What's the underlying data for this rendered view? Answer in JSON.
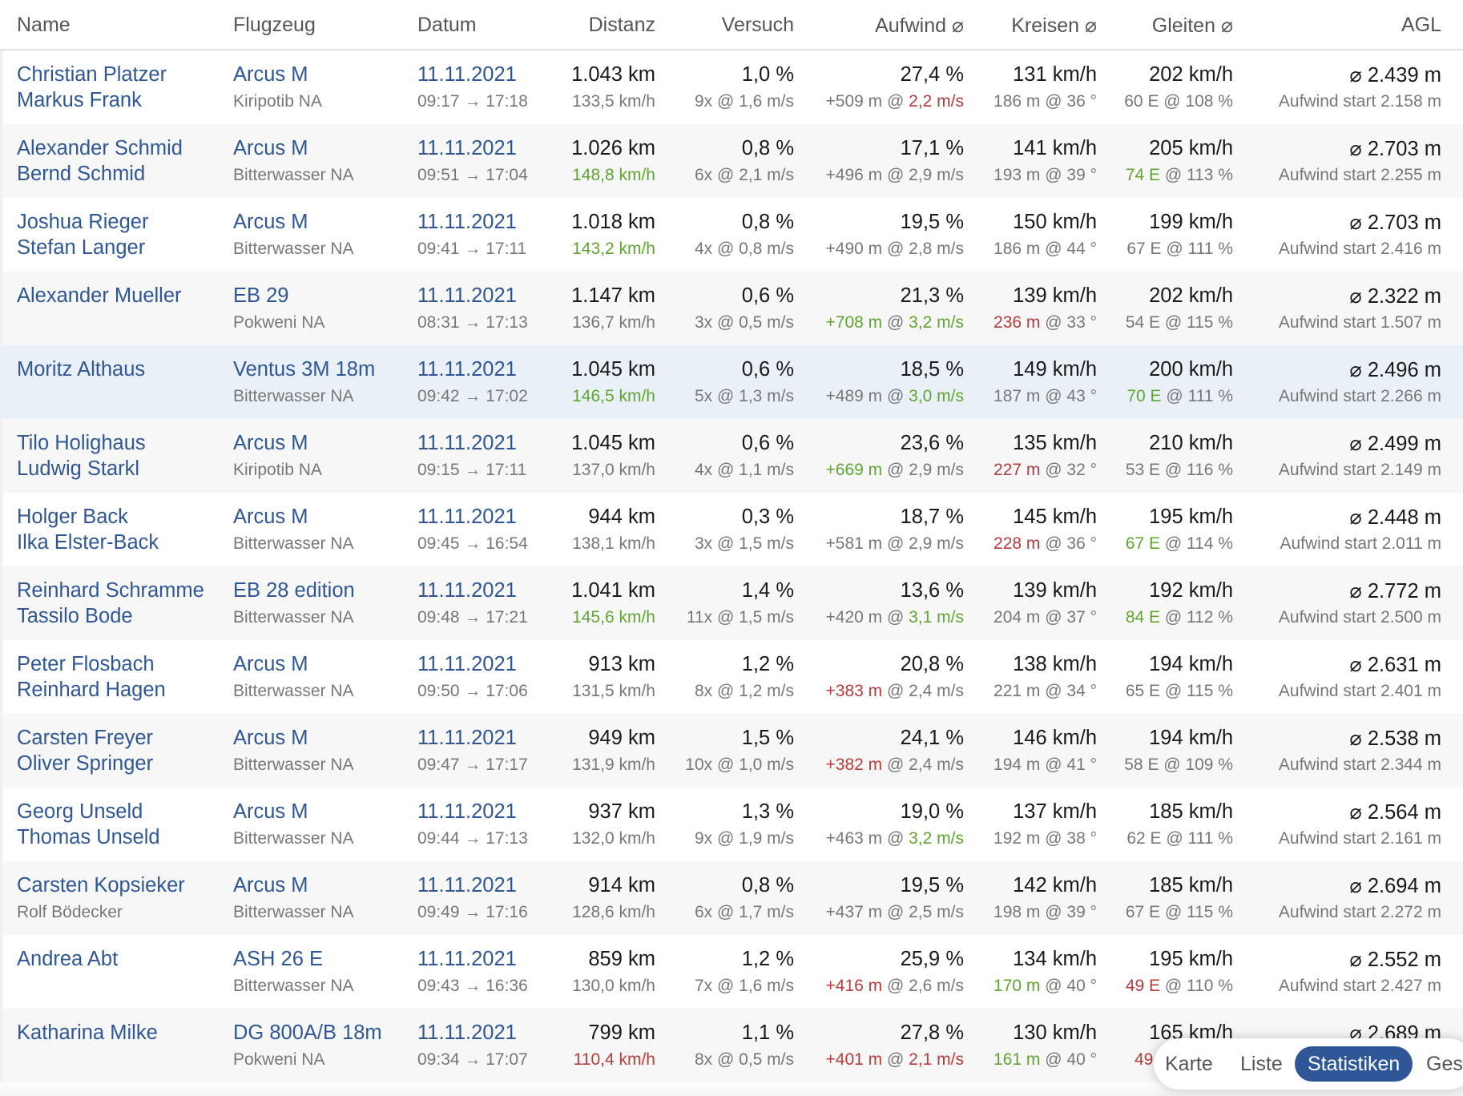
{
  "headers": {
    "name": "Name",
    "aircraft": "Flugzeug",
    "date": "Datum",
    "distance": "Distanz",
    "attempt": "Versuch",
    "climb": "Aufwind ⌀",
    "circling": "Kreisen ⌀",
    "glide": "Gleiten ⌀",
    "agl": "AGL"
  },
  "flights": [
    {
      "pilot": "Christian Platzer",
      "copilot": "Markus Frank",
      "copilot_muted": false,
      "aircraft": "Arcus M",
      "airfield": "Kiripotib NA",
      "date": "11.11.2021",
      "time": "09:17 → 17:18",
      "distance": "1.043 km",
      "speed": "133,5 km/h",
      "attempt": "1,0 %",
      "attempt_detail": "9x @ 1,6 m/s",
      "climb": "27,4 %",
      "climb_gain": "+509 m",
      "climb_rate": "2,2 m/s",
      "circ_speed": "131 km/h",
      "circ_height": "186 m",
      "circ_angle": "@ 36 °",
      "glide_speed": "202 km/h",
      "glide_ratio": "60 E",
      "glide_pct": "@ 108 %",
      "agl": "⌀ 2.439 m",
      "agl_start": "Aufwind start 2.158 m"
    },
    {
      "pilot": "Alexander Schmid",
      "copilot": "Bernd Schmid",
      "copilot_muted": false,
      "aircraft": "Arcus M",
      "airfield": "Bitterwasser NA",
      "date": "11.11.2021",
      "time": "09:51 → 17:04",
      "distance": "1.026 km",
      "speed": "148,8 km/h",
      "attempt": "0,8 %",
      "attempt_detail": "6x @ 2,1 m/s",
      "climb": "17,1 %",
      "climb_gain": "+496 m",
      "climb_rate": "2,9 m/s",
      "circ_speed": "141 km/h",
      "circ_height": "193 m",
      "circ_angle": "@ 39 °",
      "glide_speed": "205 km/h",
      "glide_ratio": "74 E",
      "glide_pct": "@ 113 %",
      "agl": "⌀ 2.703 m",
      "agl_start": "Aufwind start 2.255 m"
    },
    {
      "pilot": "Joshua Rieger",
      "copilot": "Stefan Langer",
      "copilot_muted": false,
      "aircraft": "Arcus M",
      "airfield": "Bitterwasser NA",
      "date": "11.11.2021",
      "time": "09:41 → 17:11",
      "distance": "1.018 km",
      "speed": "143,2 km/h",
      "attempt": "0,8 %",
      "attempt_detail": "4x @ 0,8 m/s",
      "climb": "19,5 %",
      "climb_gain": "+490 m",
      "climb_rate": "2,8 m/s",
      "circ_speed": "150 km/h",
      "circ_height": "186 m",
      "circ_angle": "@ 44 °",
      "glide_speed": "199 km/h",
      "glide_ratio": "67 E",
      "glide_pct": "@ 111 %",
      "agl": "⌀ 2.703 m",
      "agl_start": "Aufwind start 2.416 m"
    },
    {
      "pilot": "Alexander Mueller",
      "copilot": "",
      "copilot_muted": false,
      "aircraft": "EB 29",
      "airfield": "Pokweni NA",
      "date": "11.11.2021",
      "time": "08:31 → 17:13",
      "distance": "1.147 km",
      "speed": "136,7 km/h",
      "attempt": "0,6 %",
      "attempt_detail": "3x @ 0,5 m/s",
      "climb": "21,3 %",
      "climb_gain": "+708 m",
      "climb_rate": "3,2 m/s",
      "circ_speed": "139 km/h",
      "circ_height": "236 m",
      "circ_angle": "@ 33 °",
      "glide_speed": "202 km/h",
      "glide_ratio": "54 E",
      "glide_pct": "@ 115 %",
      "agl": "⌀ 2.322 m",
      "agl_start": "Aufwind start 1.507 m"
    },
    {
      "pilot": "Moritz Althaus",
      "copilot": "",
      "copilot_muted": false,
      "aircraft": "Ventus 3M 18m",
      "airfield": "Bitterwasser NA",
      "date": "11.11.2021",
      "time": "09:42 → 17:02",
      "distance": "1.045 km",
      "speed": "146,5 km/h",
      "attempt": "0,6 %",
      "attempt_detail": "5x @ 1,3 m/s",
      "climb": "18,5 %",
      "climb_gain": "+489 m",
      "climb_rate": "3,0 m/s",
      "circ_speed": "149 km/h",
      "circ_height": "187 m",
      "circ_angle": "@ 43 °",
      "glide_speed": "200 km/h",
      "glide_ratio": "70 E",
      "glide_pct": "@ 111 %",
      "agl": "⌀ 2.496 m",
      "agl_start": "Aufwind start 2.266 m"
    },
    {
      "pilot": "Tilo Holighaus",
      "copilot": "Ludwig Starkl",
      "copilot_muted": false,
      "aircraft": "Arcus M",
      "airfield": "Kiripotib NA",
      "date": "11.11.2021",
      "time": "09:15 → 17:11",
      "distance": "1.045 km",
      "speed": "137,0 km/h",
      "attempt": "0,6 %",
      "attempt_detail": "4x @ 1,1 m/s",
      "climb": "23,6 %",
      "climb_gain": "+669 m",
      "climb_rate": "2,9 m/s",
      "circ_speed": "135 km/h",
      "circ_height": "227 m",
      "circ_angle": "@ 32 °",
      "glide_speed": "210 km/h",
      "glide_ratio": "53 E",
      "glide_pct": "@ 116 %",
      "agl": "⌀ 2.499 m",
      "agl_start": "Aufwind start 2.149 m"
    },
    {
      "pilot": "Holger Back",
      "copilot": "Ilka Elster-Back",
      "copilot_muted": false,
      "aircraft": "Arcus M",
      "airfield": "Bitterwasser NA",
      "date": "11.11.2021",
      "time": "09:45 → 16:54",
      "distance": "944 km",
      "speed": "138,1 km/h",
      "attempt": "0,3 %",
      "attempt_detail": "3x @ 1,5 m/s",
      "climb": "18,7 %",
      "climb_gain": "+581 m",
      "climb_rate": "2,9 m/s",
      "circ_speed": "145 km/h",
      "circ_height": "228 m",
      "circ_angle": "@ 36 °",
      "glide_speed": "195 km/h",
      "glide_ratio": "67 E",
      "glide_pct": "@ 114 %",
      "agl": "⌀ 2.448 m",
      "agl_start": "Aufwind start 2.011 m"
    },
    {
      "pilot": "Reinhard Schramme",
      "copilot": "Tassilo Bode",
      "copilot_muted": false,
      "aircraft": "EB 28 edition",
      "airfield": "Bitterwasser NA",
      "date": "11.11.2021",
      "time": "09:48 → 17:21",
      "distance": "1.041 km",
      "speed": "145,6 km/h",
      "attempt": "1,4 %",
      "attempt_detail": "11x @ 1,5 m/s",
      "climb": "13,6 %",
      "climb_gain": "+420 m",
      "climb_rate": "3,1 m/s",
      "circ_speed": "139 km/h",
      "circ_height": "204 m",
      "circ_angle": "@ 37 °",
      "glide_speed": "192 km/h",
      "glide_ratio": "84 E",
      "glide_pct": "@ 112 %",
      "agl": "⌀ 2.772 m",
      "agl_start": "Aufwind start 2.500 m"
    },
    {
      "pilot": "Peter Flosbach",
      "copilot": "Reinhard Hagen",
      "copilot_muted": false,
      "aircraft": "Arcus M",
      "airfield": "Bitterwasser NA",
      "date": "11.11.2021",
      "time": "09:50 → 17:06",
      "distance": "913 km",
      "speed": "131,5 km/h",
      "attempt": "1,2 %",
      "attempt_detail": "8x @ 1,2 m/s",
      "climb": "20,8 %",
      "climb_gain": "+383 m",
      "climb_rate": "2,4 m/s",
      "circ_speed": "138 km/h",
      "circ_height": "221 m",
      "circ_angle": "@ 34 °",
      "glide_speed": "194 km/h",
      "glide_ratio": "65 E",
      "glide_pct": "@ 115 %",
      "agl": "⌀ 2.631 m",
      "agl_start": "Aufwind start 2.401 m"
    },
    {
      "pilot": "Carsten Freyer",
      "copilot": "Oliver Springer",
      "copilot_muted": false,
      "aircraft": "Arcus M",
      "airfield": "Bitterwasser NA",
      "date": "11.11.2021",
      "time": "09:47 → 17:17",
      "distance": "949 km",
      "speed": "131,9 km/h",
      "attempt": "1,5 %",
      "attempt_detail": "10x @ 1,0 m/s",
      "climb": "24,1 %",
      "climb_gain": "+382 m",
      "climb_rate": "2,4 m/s",
      "circ_speed": "146 km/h",
      "circ_height": "194 m",
      "circ_angle": "@ 41 °",
      "glide_speed": "194 km/h",
      "glide_ratio": "58 E",
      "glide_pct": "@ 109 %",
      "agl": "⌀ 2.538 m",
      "agl_start": "Aufwind start 2.344 m"
    },
    {
      "pilot": "Georg Unseld",
      "copilot": "Thomas Unseld",
      "copilot_muted": false,
      "aircraft": "Arcus M",
      "airfield": "Bitterwasser NA",
      "date": "11.11.2021",
      "time": "09:44 → 17:13",
      "distance": "937 km",
      "speed": "132,0 km/h",
      "attempt": "1,3 %",
      "attempt_detail": "9x @ 1,9 m/s",
      "climb": "19,0 %",
      "climb_gain": "+463 m",
      "climb_rate": "3,2 m/s",
      "circ_speed": "137 km/h",
      "circ_height": "192 m",
      "circ_angle": "@ 38 °",
      "glide_speed": "185 km/h",
      "glide_ratio": "62 E",
      "glide_pct": "@ 111 %",
      "agl": "⌀ 2.564 m",
      "agl_start": "Aufwind start 2.161 m"
    },
    {
      "pilot": "Carsten Kopsieker",
      "copilot": "Rolf Bödecker",
      "copilot_muted": true,
      "aircraft": "Arcus M",
      "airfield": "Bitterwasser NA",
      "date": "11.11.2021",
      "time": "09:49 → 17:16",
      "distance": "914 km",
      "speed": "128,6 km/h",
      "attempt": "0,8 %",
      "attempt_detail": "6x @ 1,7 m/s",
      "climb": "19,5 %",
      "climb_gain": "+437 m",
      "climb_rate": "2,5 m/s",
      "circ_speed": "142 km/h",
      "circ_height": "198 m",
      "circ_angle": "@ 39 °",
      "glide_speed": "185 km/h",
      "glide_ratio": "67 E",
      "glide_pct": "@ 115 %",
      "agl": "⌀ 2.694 m",
      "agl_start": "Aufwind start 2.272 m"
    },
    {
      "pilot": "Andrea Abt",
      "copilot": "",
      "copilot_muted": false,
      "aircraft": "ASH 26 E",
      "airfield": "Bitterwasser NA",
      "date": "11.11.2021",
      "time": "09:43 → 16:36",
      "distance": "859 km",
      "speed": "130,0 km/h",
      "attempt": "1,2 %",
      "attempt_detail": "7x @ 1,6 m/s",
      "climb": "25,9 %",
      "climb_gain": "+416 m",
      "climb_rate": "2,6 m/s",
      "circ_speed": "134 km/h",
      "circ_height": "170 m",
      "circ_angle": "@ 40 °",
      "glide_speed": "195 km/h",
      "glide_ratio": "49 E",
      "glide_pct": "@ 110 %",
      "agl": "⌀ 2.552 m",
      "agl_start": "Aufwind start 2.427 m"
    },
    {
      "pilot": "Katharina Milke",
      "copilot": "",
      "copilot_muted": false,
      "aircraft": "DG 800A/B 18m",
      "airfield": "Pokweni NA",
      "date": "11.11.2021",
      "time": "09:34 → 17:07",
      "distance": "799 km",
      "speed": "110,4 km/h",
      "attempt": "1,1 %",
      "attempt_detail": "8x @ 0,5 m/s",
      "climb": "27,8 %",
      "climb_gain": "+401 m",
      "climb_rate": "2,1 m/s",
      "circ_speed": "130 km/h",
      "circ_height": "161 m",
      "circ_angle": "@ 40 °",
      "glide_speed": "165 km/h",
      "glide_ratio": "49",
      "glide_pct": "",
      "agl": "⌀ 2.689 m",
      "agl_start": ""
    }
  ],
  "highlights": {
    "speed": {
      "1": "green",
      "2": "green",
      "4": "green",
      "7": "green",
      "13": "red"
    },
    "attempt": {
      "6": "green",
      "7": "red",
      "9": "red"
    },
    "climb_gain": {
      "3": "green",
      "5": "green",
      "8": "red",
      "9": "red",
      "12": "red",
      "13": "red"
    },
    "climb_rate": {
      "0": "red",
      "3": "green",
      "4": "green",
      "7": "green",
      "10": "green",
      "13": "red"
    },
    "circ_height": {
      "3": "red",
      "5": "red",
      "6": "red",
      "12": "green",
      "13": "green"
    },
    "glide_ratio": {
      "1": "green",
      "4": "green",
      "6": "green",
      "7": "green",
      "12": "red",
      "13": "red"
    }
  },
  "selected_row": 4,
  "nav": {
    "tabs": [
      "Karte",
      "Liste",
      "Statistiken",
      "Gesamt"
    ],
    "active": 2
  },
  "colors": {
    "link": "#2f5797",
    "positive": "#5fa530",
    "negative": "#b83c3c"
  }
}
